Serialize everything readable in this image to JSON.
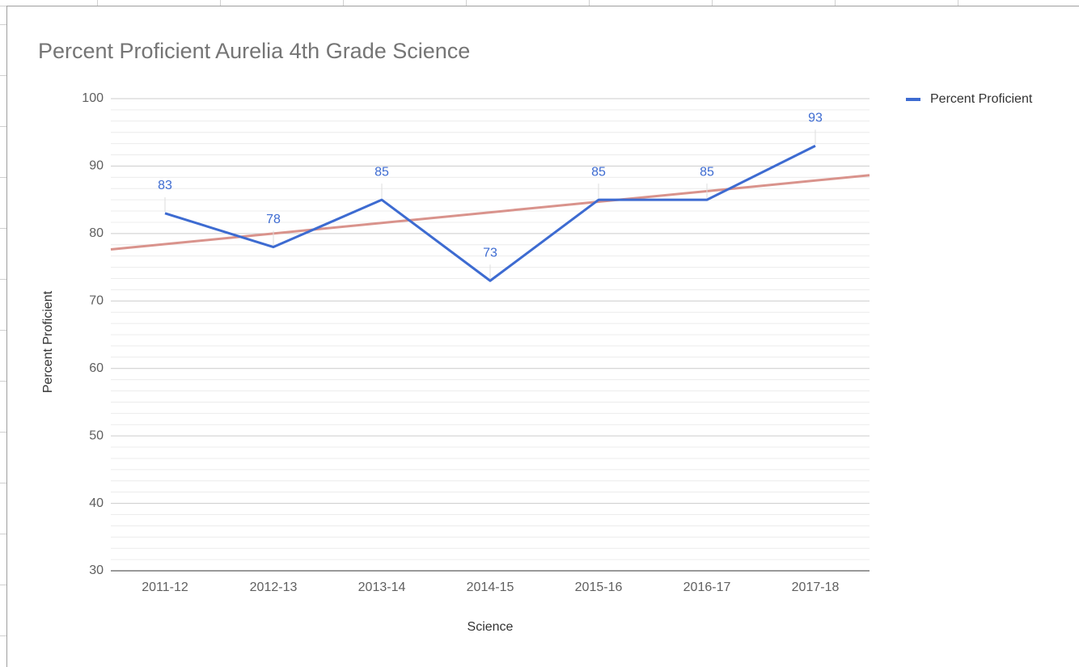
{
  "chart_data": {
    "type": "line",
    "title": "Percent Proficient Aurelia 4th Grade Science",
    "x_label": "Science",
    "y_label": "Percent Proficient",
    "categories": [
      "2011-12",
      "2012-13",
      "2013-14",
      "2014-15",
      "2015-16",
      "2016-17",
      "2017-18"
    ],
    "series": [
      {
        "name": "Percent Proficient",
        "color": "#3d6bd1",
        "values": [
          83,
          78,
          85,
          73,
          85,
          85,
          93
        ]
      }
    ],
    "ylim": [
      30,
      100
    ],
    "yticks": [
      30,
      40,
      50,
      60,
      70,
      80,
      90,
      100
    ],
    "grid": true,
    "minor_grid_count": 5,
    "trendline": {
      "type": "linear",
      "color": "#d9938c"
    },
    "data_labels": true,
    "legend": "right"
  }
}
